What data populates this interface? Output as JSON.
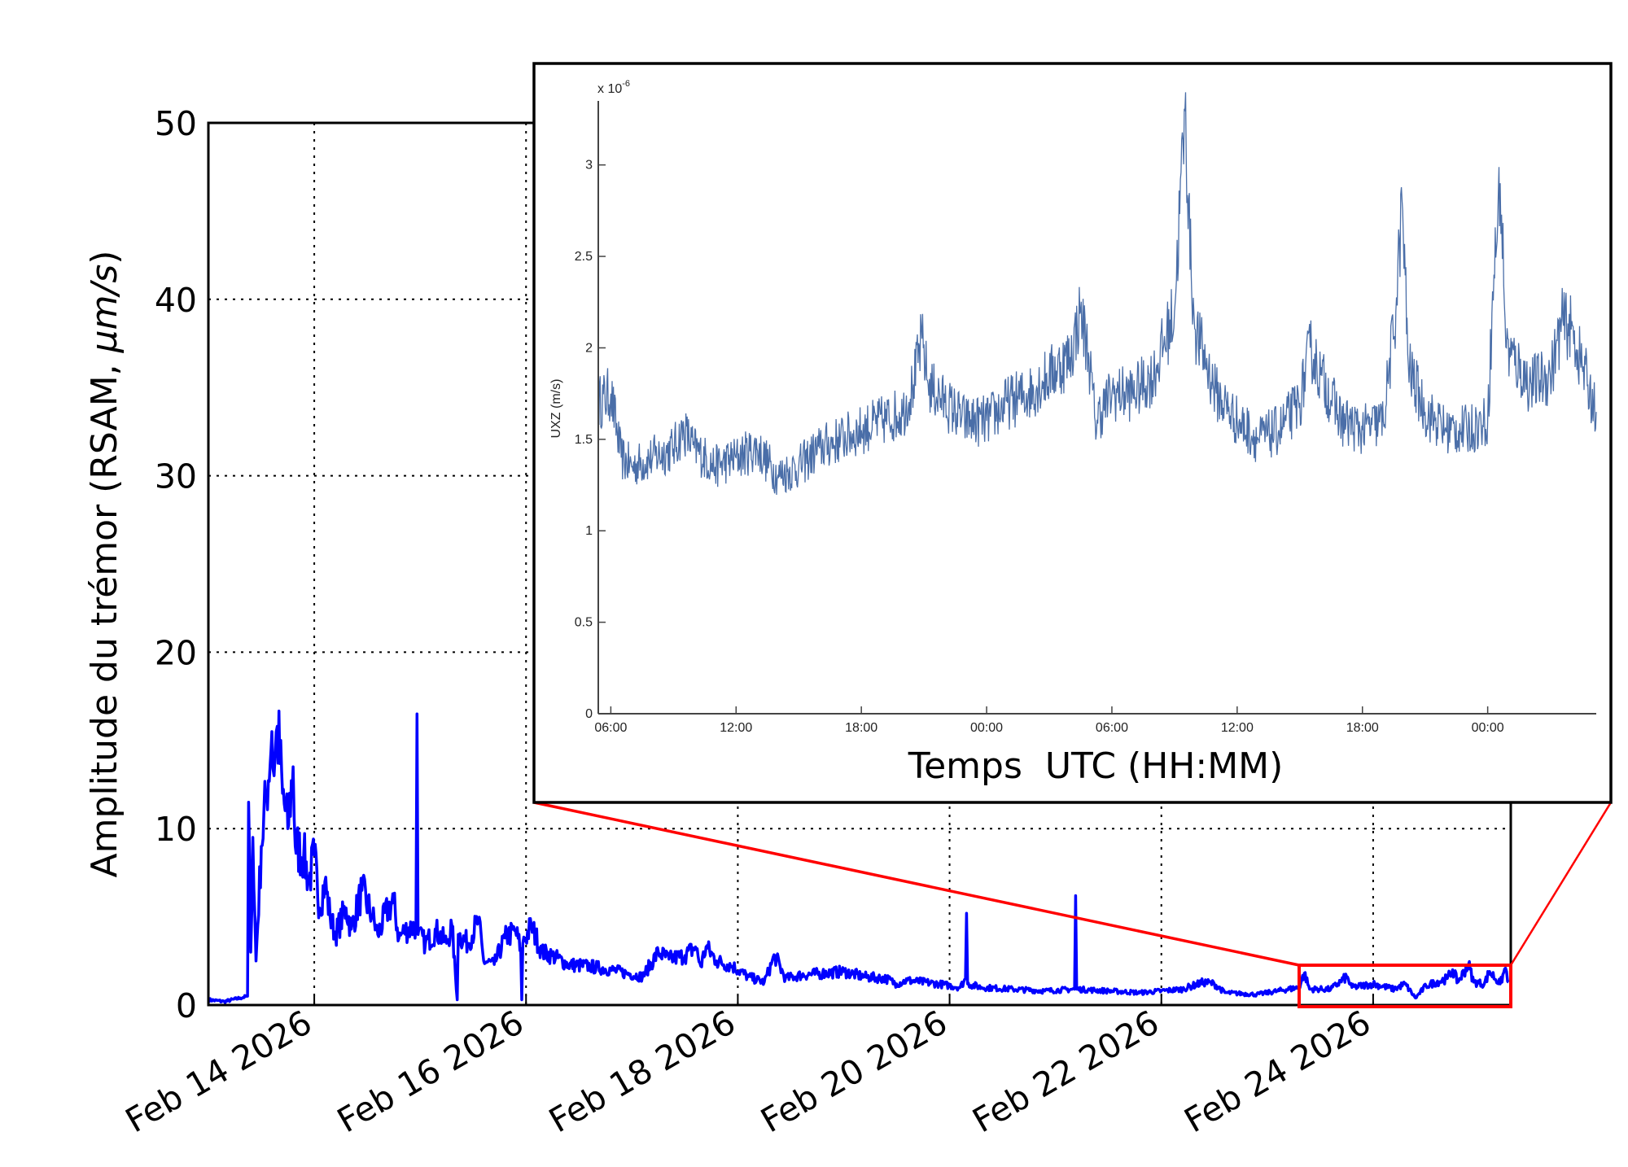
{
  "chart_data": [
    {
      "type": "line",
      "title": "",
      "ylabel": "Amplitude du trémor (RSAM, ",
      "ylabel_unit": "µm/s",
      "ylabel_close": ")",
      "xlabel": "",
      "x_unit": "days since Feb 13 2026 00:00",
      "xlim": [
        0,
        12.3
      ],
      "ylim": [
        0,
        50
      ],
      "yticks": [
        0,
        10,
        20,
        30,
        40,
        50
      ],
      "xticks": [
        {
          "day": 1,
          "label": "Feb 14 2026"
        },
        {
          "day": 3,
          "label": "Feb 16 2026"
        },
        {
          "day": 5,
          "label": "Feb 18 2026"
        },
        {
          "day": 7,
          "label": "Feb 20 2026"
        },
        {
          "day": 9,
          "label": "Feb 22 2026"
        },
        {
          "day": 11,
          "label": "Feb 24 2026"
        }
      ],
      "grid": true,
      "color": "#0000ff",
      "zoom_region": {
        "x": [
          10.3,
          12.3
        ],
        "y": [
          -0.2,
          3.5
        ],
        "color": "#ff0000"
      },
      "series": [
        {
          "name": "RSAM",
          "points": [
            [
              0,
              0.3
            ],
            [
              0.15,
              0.2
            ],
            [
              0.3,
              0.4
            ],
            [
              0.37,
              0.5
            ],
            [
              0.38,
              11.5
            ],
            [
              0.4,
              3
            ],
            [
              0.42,
              9.5
            ],
            [
              0.45,
              2.5
            ],
            [
              0.5,
              9
            ],
            [
              0.55,
              12
            ],
            [
              0.6,
              15.5
            ],
            [
              0.62,
              13
            ],
            [
              0.65,
              15.8
            ],
            [
              0.7,
              12
            ],
            [
              0.75,
              10
            ],
            [
              0.8,
              13.5
            ],
            [
              0.82,
              9
            ],
            [
              0.9,
              8.5
            ],
            [
              0.95,
              7
            ],
            [
              1.0,
              8.5
            ],
            [
              1.05,
              5.5
            ],
            [
              1.1,
              7
            ],
            [
              1.15,
              5
            ],
            [
              1.2,
              4
            ],
            [
              1.3,
              5.5
            ],
            [
              1.35,
              4.3
            ],
            [
              1.45,
              6.5
            ],
            [
              1.55,
              5
            ],
            [
              1.6,
              4
            ],
            [
              1.7,
              5.5
            ],
            [
              1.75,
              5.8
            ],
            [
              1.8,
              3.8
            ],
            [
              1.85,
              4.2
            ],
            [
              1.96,
              4.5
            ],
            [
              1.97,
              16.5
            ],
            [
              1.98,
              4
            ],
            [
              2.05,
              3.5
            ],
            [
              2.15,
              4.2
            ],
            [
              2.25,
              3.5
            ],
            [
              2.3,
              4.5
            ],
            [
              2.35,
              0.3
            ],
            [
              2.36,
              4.0
            ],
            [
              2.45,
              3.5
            ],
            [
              2.55,
              4.8
            ],
            [
              2.6,
              2.5
            ],
            [
              2.7,
              2.3
            ],
            [
              2.8,
              3.8
            ],
            [
              2.9,
              4.2
            ],
            [
              2.95,
              3.2
            ],
            [
              2.96,
              0.3
            ],
            [
              2.97,
              3.5
            ],
            [
              3.05,
              4.5
            ],
            [
              3.15,
              3.0
            ],
            [
              3.25,
              2.8
            ],
            [
              3.4,
              2.3
            ],
            [
              3.6,
              2.2
            ],
            [
              3.8,
              2.0
            ],
            [
              3.95,
              1.8
            ],
            [
              4.1,
              1.6
            ],
            [
              4.25,
              3.0
            ],
            [
              4.35,
              2.6
            ],
            [
              4.5,
              2.8
            ],
            [
              4.6,
              3.3
            ],
            [
              4.65,
              2.2
            ],
            [
              4.7,
              3.3
            ],
            [
              4.8,
              2.5
            ],
            [
              4.95,
              2.2
            ],
            [
              5.1,
              1.6
            ],
            [
              5.25,
              1.3
            ],
            [
              5.35,
              2.8
            ],
            [
              5.45,
              1.5
            ],
            [
              5.6,
              1.7
            ],
            [
              5.8,
              1.8
            ],
            [
              6.0,
              1.9
            ],
            [
              6.2,
              1.6
            ],
            [
              6.4,
              1.5
            ],
            [
              6.5,
              1.2
            ],
            [
              6.6,
              1.4
            ],
            [
              6.9,
              1.2
            ],
            [
              7.1,
              1.0
            ],
            [
              7.15,
              1.5
            ],
            [
              7.16,
              5.2
            ],
            [
              7.17,
              1.2
            ],
            [
              7.3,
              1.0
            ],
            [
              7.6,
              0.9
            ],
            [
              7.9,
              0.8
            ],
            [
              8.18,
              0.9
            ],
            [
              8.19,
              6.2
            ],
            [
              8.2,
              0.9
            ],
            [
              8.5,
              0.8
            ],
            [
              8.8,
              0.7
            ],
            [
              9.0,
              0.8
            ],
            [
              9.2,
              0.9
            ],
            [
              9.4,
              1.3
            ],
            [
              9.5,
              1.2
            ],
            [
              9.6,
              0.7
            ],
            [
              9.9,
              0.6
            ],
            [
              10.1,
              0.8
            ],
            [
              10.3,
              1.0
            ],
            [
              10.35,
              1.8
            ],
            [
              10.4,
              0.9
            ],
            [
              10.6,
              0.9
            ],
            [
              10.75,
              1.6
            ],
            [
              10.8,
              1.0
            ],
            [
              11.0,
              1.2
            ],
            [
              11.2,
              0.9
            ],
            [
              11.3,
              1.2
            ],
            [
              11.4,
              0.4
            ],
            [
              11.5,
              1.1
            ],
            [
              11.7,
              1.5
            ],
            [
              11.75,
              2.0
            ],
            [
              11.8,
              1.3
            ],
            [
              11.9,
              2.3
            ],
            [
              11.95,
              1.3
            ],
            [
              12.05,
              1.2
            ],
            [
              12.1,
              1.9
            ],
            [
              12.2,
              1.2
            ],
            [
              12.25,
              2.1
            ],
            [
              12.28,
              1.3
            ]
          ]
        }
      ]
    },
    {
      "type": "line",
      "title": "",
      "ylabel": "UXZ (m/s)",
      "xlabel": "Temps  UTC (HH:MM)",
      "scale_label": "x 10",
      "scale_exp": "-6",
      "x_unit": "hours since first 06:00",
      "xlim": [
        -0.6,
        47.2
      ],
      "ylim": [
        0,
        3.35
      ],
      "yticks": [
        {
          "v": 0,
          "label": "0"
        },
        {
          "v": 0.5,
          "label": "0.5"
        },
        {
          "v": 1,
          "label": "1"
        },
        {
          "v": 1.5,
          "label": "1.5"
        },
        {
          "v": 2,
          "label": "2"
        },
        {
          "v": 2.5,
          "label": "2.5"
        },
        {
          "v": 3,
          "label": "3"
        }
      ],
      "xticks": [
        {
          "h": 0,
          "label": "06:00"
        },
        {
          "h": 6,
          "label": "12:00"
        },
        {
          "h": 12,
          "label": "18:00"
        },
        {
          "h": 18,
          "label": "00:00"
        },
        {
          "h": 24,
          "label": "06:00"
        },
        {
          "h": 30,
          "label": "12:00"
        },
        {
          "h": 36,
          "label": "18:00"
        },
        {
          "h": 42,
          "label": "00:00"
        }
      ],
      "color": "#2a5599",
      "series": [
        {
          "name": "UXZ",
          "points": [
            [
              -0.6,
              1.7
            ],
            [
              0,
              1.75
            ],
            [
              0.5,
              1.4
            ],
            [
              1,
              1.35
            ],
            [
              2,
              1.4
            ],
            [
              3,
              1.45
            ],
            [
              3.5,
              1.55
            ],
            [
              4,
              1.45
            ],
            [
              5,
              1.35
            ],
            [
              6,
              1.4
            ],
            [
              7,
              1.45
            ],
            [
              8,
              1.3
            ],
            [
              9,
              1.35
            ],
            [
              10,
              1.45
            ],
            [
              11,
              1.5
            ],
            [
              12,
              1.55
            ],
            [
              13,
              1.6
            ],
            [
              14,
              1.65
            ],
            [
              14.5,
              1.8
            ],
            [
              14.9,
              2.05
            ],
            [
              15.2,
              1.8
            ],
            [
              16,
              1.7
            ],
            [
              17,
              1.6
            ],
            [
              18,
              1.6
            ],
            [
              19,
              1.7
            ],
            [
              20,
              1.75
            ],
            [
              21,
              1.85
            ],
            [
              22,
              1.95
            ],
            [
              22.5,
              2.2
            ],
            [
              22.9,
              1.95
            ],
            [
              23.2,
              1.6
            ],
            [
              24,
              1.75
            ],
            [
              25,
              1.75
            ],
            [
              26,
              1.85
            ],
            [
              27,
              2.2
            ],
            [
              27.5,
              3.3
            ],
            [
              27.8,
              2.4
            ],
            [
              28,
              2.1
            ],
            [
              29,
              1.75
            ],
            [
              30,
              1.6
            ],
            [
              31,
              1.5
            ],
            [
              32,
              1.55
            ],
            [
              33,
              1.7
            ],
            [
              33.5,
              2.0
            ],
            [
              34,
              1.85
            ],
            [
              35,
              1.6
            ],
            [
              36,
              1.55
            ],
            [
              37,
              1.6
            ],
            [
              37.6,
              2.2
            ],
            [
              37.9,
              2.8
            ],
            [
              38.2,
              1.9
            ],
            [
              39,
              1.65
            ],
            [
              40,
              1.55
            ],
            [
              41,
              1.55
            ],
            [
              42,
              1.6
            ],
            [
              42.3,
              2.4
            ],
            [
              42.6,
              2.9
            ],
            [
              42.9,
              2.0
            ],
            [
              44,
              1.8
            ],
            [
              45,
              1.85
            ],
            [
              45.6,
              2.15
            ],
            [
              46,
              2.1
            ],
            [
              46.8,
              1.8
            ],
            [
              47.2,
              1.65
            ]
          ]
        }
      ]
    }
  ]
}
